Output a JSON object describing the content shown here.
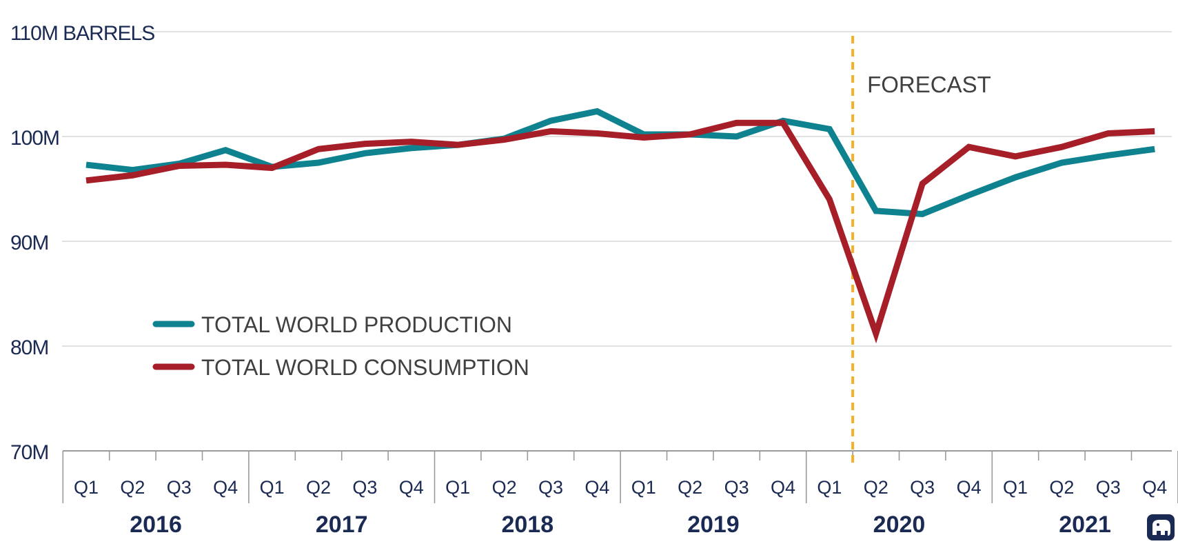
{
  "chart_data": {
    "type": "line",
    "title": "",
    "ylabel": "110M BARRELS",
    "ylim": [
      70,
      110
    ],
    "y_ticks": [
      {
        "value": 110,
        "label": "110M BARRELS"
      },
      {
        "value": 100,
        "label": "100M"
      },
      {
        "value": 90,
        "label": "90M"
      },
      {
        "value": 80,
        "label": "80M"
      },
      {
        "value": 70,
        "label": "70M"
      }
    ],
    "years": [
      "2016",
      "2017",
      "2018",
      "2019",
      "2020",
      "2021"
    ],
    "quarters": [
      "Q1",
      "Q2",
      "Q3",
      "Q4"
    ],
    "series": [
      {
        "name": "TOTAL WORLD PRODUCTION",
        "color": "#0f8290",
        "values": [
          97.3,
          96.8,
          97.4,
          98.7,
          97.1,
          97.5,
          98.4,
          98.9,
          99.2,
          99.8,
          101.5,
          102.4,
          100.2,
          100.2,
          100.0,
          101.5,
          100.7,
          92.9,
          92.6,
          94.4,
          96.1,
          97.5,
          98.2,
          98.8
        ]
      },
      {
        "name": "TOTAL WORLD CONSUMPTION",
        "color": "#a51e28",
        "values": [
          95.8,
          96.3,
          97.2,
          97.3,
          97.0,
          98.8,
          99.3,
          99.5,
          99.2,
          99.7,
          100.5,
          100.3,
          99.9,
          100.2,
          101.3,
          101.3,
          94.0,
          81.2,
          95.5,
          99.0,
          98.1,
          99.0,
          100.3,
          100.5
        ]
      }
    ],
    "annotations": [
      {
        "label": "FORECAST",
        "position_quarter_index": 16.5,
        "color": "#f3b12b",
        "style": "dashed vertical line"
      }
    ],
    "legend_position": "lower-left",
    "grid": true
  },
  "logo": {
    "name": "elephant-logo"
  }
}
